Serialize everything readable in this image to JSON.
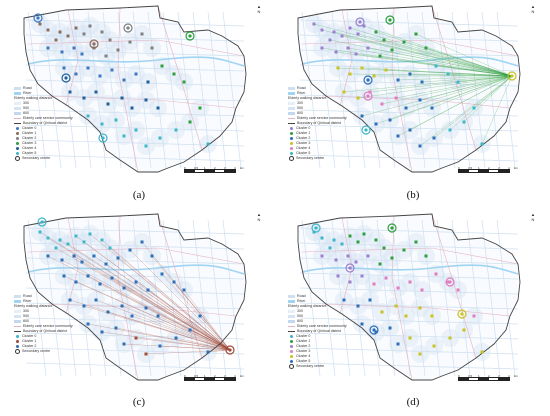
{
  "panels": [
    {
      "caption": "(a)",
      "legend_items": [
        {
          "kind": "swatch",
          "label": "Road",
          "color": "#cfe0f1"
        },
        {
          "kind": "swatch",
          "label": "River",
          "color": "#9fd4f2"
        },
        {
          "kind": "heading",
          "label": "Elderly walking distance"
        },
        {
          "kind": "swatch",
          "label": "300",
          "color": "#e6eef8"
        },
        {
          "kind": "swatch",
          "label": "500",
          "color": "#d6e4f4"
        },
        {
          "kind": "swatch",
          "label": "800",
          "color": "#c3d7ef"
        },
        {
          "kind": "line",
          "label": "Elderly care service community",
          "color": "#e6b3c3"
        },
        {
          "kind": "line",
          "label": "Boundary of Qinhuai district",
          "color": "#444444"
        },
        {
          "kind": "dot",
          "label": "Cluster 0",
          "color": "#3a78c2"
        },
        {
          "kind": "dot",
          "label": "Cluster 1",
          "color": "#8b6d5c"
        },
        {
          "kind": "dot",
          "label": "Cluster 2",
          "color": "#7f7f7f"
        },
        {
          "kind": "dot",
          "label": "Cluster 3",
          "color": "#2e9e3e"
        },
        {
          "kind": "dot",
          "label": "Cluster 4",
          "color": "#1f5f9a"
        },
        {
          "kind": "dot",
          "label": "Cluster 5",
          "color": "#3cb6c9"
        },
        {
          "kind": "ring",
          "label": "Secondary centre",
          "color": "#333333"
        }
      ]
    },
    {
      "caption": "(b)",
      "legend_items": [
        {
          "kind": "swatch",
          "label": "Road",
          "color": "#cfe0f1"
        },
        {
          "kind": "swatch",
          "label": "River",
          "color": "#9fd4f2"
        },
        {
          "kind": "heading",
          "label": "Elderly walking distance"
        },
        {
          "kind": "swatch",
          "label": "300",
          "color": "#e6eef8"
        },
        {
          "kind": "swatch",
          "label": "500",
          "color": "#d6e4f4"
        },
        {
          "kind": "swatch",
          "label": "800",
          "color": "#c3d7ef"
        },
        {
          "kind": "line",
          "label": "Elderly care service community",
          "color": "#e6b3c3"
        },
        {
          "kind": "line",
          "label": "Boundary of Qinhuai district",
          "color": "#444444"
        },
        {
          "kind": "dot",
          "label": "Cluster 0",
          "color": "#9a7fd1"
        },
        {
          "kind": "dot",
          "label": "Cluster 1",
          "color": "#2e9e3e"
        },
        {
          "kind": "dot",
          "label": "Cluster 2",
          "color": "#2b6fb8"
        },
        {
          "kind": "dot",
          "label": "Cluster 3",
          "color": "#c9c21f"
        },
        {
          "kind": "dot",
          "label": "Cluster 4",
          "color": "#e07cc0"
        },
        {
          "kind": "dot",
          "label": "Cluster 5",
          "color": "#3cb6c9"
        },
        {
          "kind": "ring",
          "label": "Secondary centre",
          "color": "#333333"
        }
      ]
    },
    {
      "caption": "(c)",
      "legend_items": [
        {
          "kind": "swatch",
          "label": "Road",
          "color": "#cfe0f1"
        },
        {
          "kind": "swatch",
          "label": "River",
          "color": "#9fd4f2"
        },
        {
          "kind": "heading",
          "label": "Elderly walking distance"
        },
        {
          "kind": "swatch",
          "label": "300",
          "color": "#e6eef8"
        },
        {
          "kind": "swatch",
          "label": "500",
          "color": "#d6e4f4"
        },
        {
          "kind": "swatch",
          "label": "800",
          "color": "#c3d7ef"
        },
        {
          "kind": "line",
          "label": "Elderly care service community",
          "color": "#e6b3c3"
        },
        {
          "kind": "line",
          "label": "Boundary of Qinhuai district",
          "color": "#444444"
        },
        {
          "kind": "dot",
          "label": "Cluster 0",
          "color": "#3cb6c9"
        },
        {
          "kind": "dot",
          "label": "Cluster 1",
          "color": "#a04a3a"
        },
        {
          "kind": "dot",
          "label": "Cluster 2",
          "color": "#2b6fb8"
        },
        {
          "kind": "ring",
          "label": "Secondary centre",
          "color": "#333333"
        }
      ]
    },
    {
      "caption": "(d)",
      "legend_items": [
        {
          "kind": "swatch",
          "label": "Road",
          "color": "#cfe0f1"
        },
        {
          "kind": "swatch",
          "label": "River",
          "color": "#9fd4f2"
        },
        {
          "kind": "heading",
          "label": "Elderly walking distance"
        },
        {
          "kind": "swatch",
          "label": "300",
          "color": "#e6eef8"
        },
        {
          "kind": "swatch",
          "label": "500",
          "color": "#d6e4f4"
        },
        {
          "kind": "swatch",
          "label": "800",
          "color": "#c3d7ef"
        },
        {
          "kind": "line",
          "label": "Elderly care service community",
          "color": "#e6b3c3"
        },
        {
          "kind": "line",
          "label": "Boundary of Qinhuai district",
          "color": "#444444"
        },
        {
          "kind": "dot",
          "label": "Cluster 0",
          "color": "#3cb6c9"
        },
        {
          "kind": "dot",
          "label": "Cluster 1",
          "color": "#2e9e3e"
        },
        {
          "kind": "dot",
          "label": "Cluster 2",
          "color": "#9a7fd1"
        },
        {
          "kind": "dot",
          "label": "Cluster 3",
          "color": "#e07cc0"
        },
        {
          "kind": "dot",
          "label": "Cluster 4",
          "color": "#c9c21f"
        },
        {
          "kind": "dot",
          "label": "Cluster 5",
          "color": "#2b6fb8"
        },
        {
          "kind": "ring",
          "label": "Secondary centre",
          "color": "#333333"
        }
      ]
    }
  ],
  "scale_labels": [
    "0",
    "0.5",
    "1",
    "2",
    "3",
    "4"
  ],
  "scale_unit": "km",
  "north_label": "N"
}
